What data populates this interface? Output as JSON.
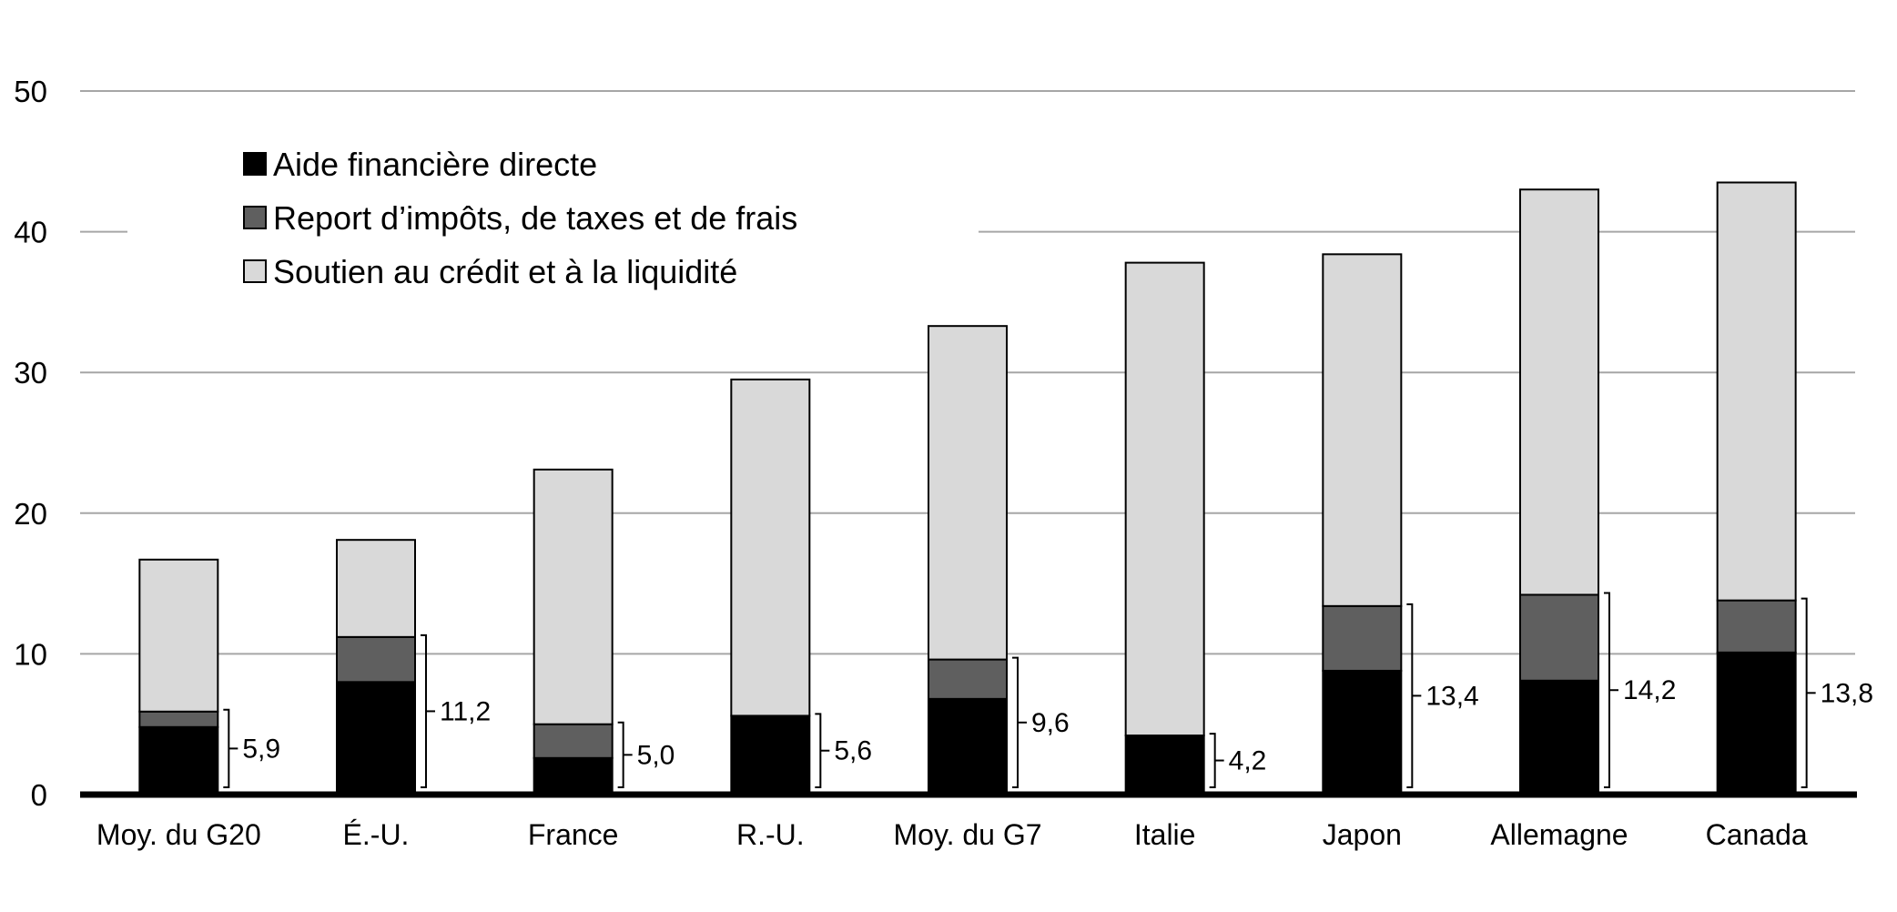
{
  "chart_data": {
    "type": "bar",
    "stacked": true,
    "categories": [
      "Moy. du G20",
      "É.-U.",
      "France",
      "R.-U.",
      "Moy. du G7",
      "Italie",
      "Japon",
      "Allemagne",
      "Canada"
    ],
    "series": [
      {
        "name": "Aide financière directe",
        "values": [
          4.8,
          8.0,
          2.6,
          5.6,
          6.8,
          4.2,
          8.8,
          8.1,
          10.1
        ]
      },
      {
        "name": "Report d’impôts, de taxes et de frais",
        "values": [
          1.1,
          3.2,
          2.4,
          0.0,
          2.8,
          0.0,
          4.6,
          6.1,
          3.7
        ]
      },
      {
        "name": "Soutien au crédit et à la liquidité",
        "values": [
          10.8,
          6.9,
          18.1,
          23.9,
          23.7,
          33.6,
          25.0,
          28.8,
          29.7
        ]
      }
    ],
    "bracket_labels": [
      "5,9",
      "11,2",
      "5,0",
      "5,6",
      "9,6",
      "4,2",
      "13,4",
      "14,2",
      "13,8"
    ],
    "y_ticks": [
      "0",
      "10",
      "20",
      "30",
      "40",
      "50"
    ],
    "ylim": [
      0,
      50
    ],
    "grid": true,
    "legend_position": "top-left",
    "colors": {
      "series": [
        "#000000",
        "#5f5f5f",
        "#d9d9d9"
      ],
      "grid": "#a6a6a6",
      "axis": "#000000"
    }
  }
}
